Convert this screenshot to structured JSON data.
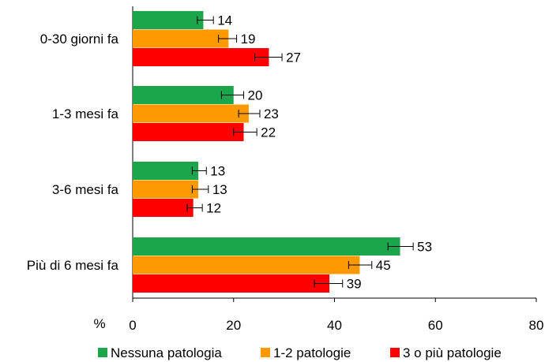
{
  "chart_data": {
    "type": "bar",
    "orientation": "horizontal",
    "unit_label": "%",
    "categories": [
      "0-30 giorni fa",
      "1-3 mesi fa",
      "3-6 mesi fa",
      "Più di 6 mesi fa"
    ],
    "series": [
      {
        "name": "Nessuna patologia",
        "color": "#1ca64c",
        "values": [
          14,
          20,
          13,
          53
        ],
        "error": [
          [
            12.8,
            16.0
          ],
          [
            17.6,
            22.0
          ],
          [
            11.8,
            14.6
          ],
          [
            50.6,
            55.6
          ]
        ]
      },
      {
        "name": "1-2 patologie",
        "color": "#ff9900",
        "values": [
          19,
          23,
          13,
          45
        ],
        "error": [
          [
            17.0,
            20.6
          ],
          [
            21.0,
            25.2
          ],
          [
            11.8,
            15.0
          ],
          [
            42.8,
            47.4
          ]
        ]
      },
      {
        "name": "3 o più patologie",
        "color": "#ff0000",
        "values": [
          27,
          22,
          12,
          39
        ],
        "error": [
          [
            24.2,
            29.6
          ],
          [
            20.0,
            24.6
          ],
          [
            10.8,
            13.8
          ],
          [
            36.0,
            41.6
          ]
        ]
      }
    ],
    "xlim": [
      0,
      80
    ],
    "xticks": [
      0,
      20,
      40,
      60,
      80
    ],
    "grid": false,
    "legend_position": "bottom"
  }
}
